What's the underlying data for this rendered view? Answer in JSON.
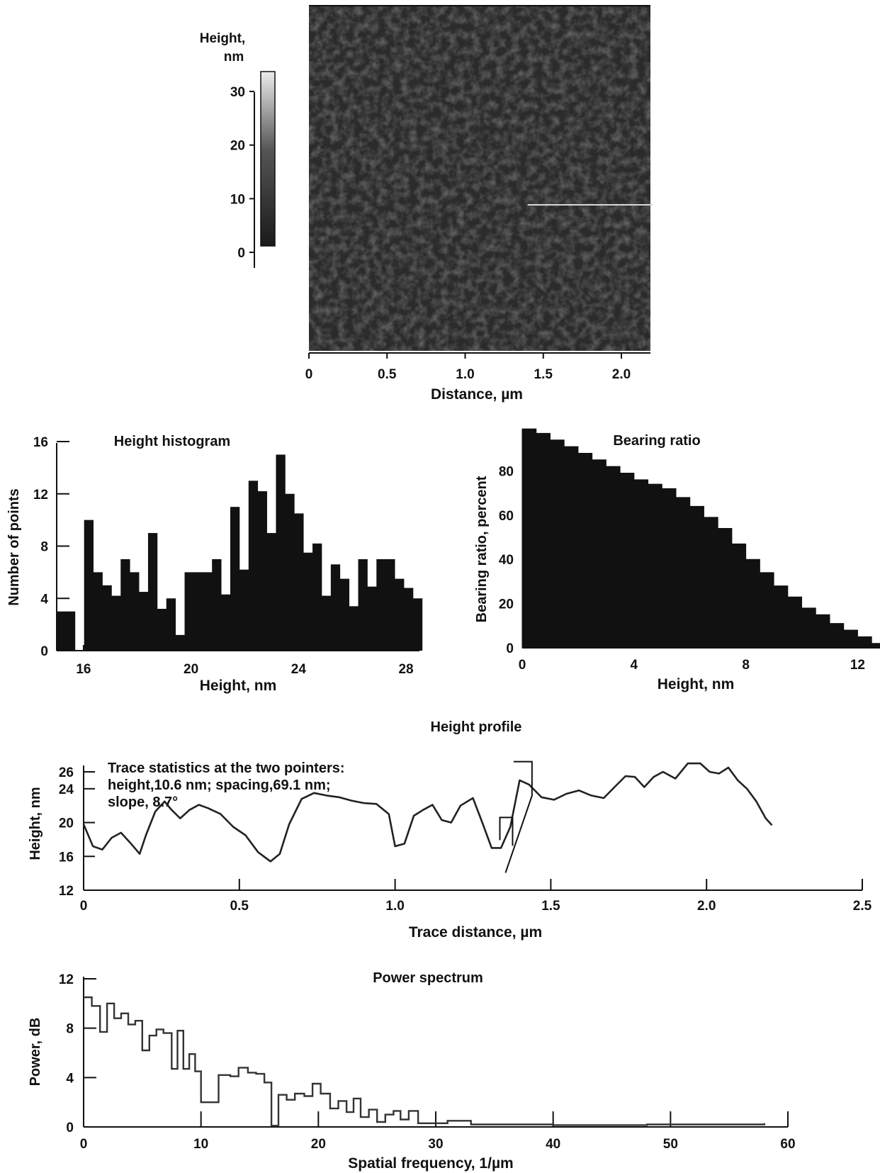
{
  "colors": {
    "ink": "#111111",
    "image_dark": "#2b2b2b",
    "image_light": "#5a5a5a",
    "paper": "#ffffff"
  },
  "chart_data": [
    {
      "type": "heatmap",
      "colorbar_label": "Height,\nnm",
      "colorbar_label_lines": [
        "Height,",
        "nm"
      ],
      "colorbar_ticks": [
        "30",
        "20",
        "10",
        "0"
      ],
      "colorbar_range": [
        0,
        34
      ],
      "xlabel": "Distance, µm",
      "xticks": [
        "0",
        "0.5",
        "1.0",
        "1.5",
        "2.0"
      ],
      "xlim": [
        0,
        2.2
      ],
      "highlight_line_y": 1.05,
      "highlight_line_x": [
        1.4,
        2.2
      ]
    },
    {
      "type": "bar",
      "title": "Height histogram",
      "xlabel": "Height, nm",
      "ylabel": "Number of points",
      "xlim": [
        15,
        28.5
      ],
      "ylim": [
        0,
        16
      ],
      "xticks": [
        "16",
        "20",
        "24",
        "28"
      ],
      "yticks": [
        "0",
        "4",
        "8",
        "12",
        "16"
      ],
      "bin_width": 0.34,
      "bin_start": 15,
      "values": [
        3,
        3,
        0,
        10,
        6,
        5,
        4.2,
        7,
        6,
        4.5,
        9,
        3.2,
        4,
        1.2,
        6,
        6,
        6,
        7,
        4.3,
        11,
        6.2,
        13,
        12.2,
        9,
        15,
        12,
        10.5,
        7.5,
        8.2,
        4.2,
        6.6,
        5.5,
        3.4,
        7,
        4.9,
        7,
        7,
        5.5,
        4.8,
        4
      ]
    },
    {
      "type": "area",
      "title": "Bearing ratio",
      "xlabel": "Height, nm",
      "ylabel": "Bearing ratio, percent",
      "xlim": [
        0,
        12.8
      ],
      "ylim": [
        0,
        100
      ],
      "xticks": [
        "0",
        "4",
        "8",
        "12"
      ],
      "yticks": [
        "0",
        "20",
        "40",
        "60",
        "80"
      ],
      "x": [
        0,
        0.5,
        1,
        1.5,
        2,
        2.5,
        3,
        3.5,
        4,
        4.5,
        5,
        5.5,
        6,
        6.5,
        7,
        7.5,
        8,
        8.5,
        9,
        9.5,
        10,
        10.5,
        11,
        11.5,
        12,
        12.5,
        12.8
      ],
      "y": [
        99,
        97,
        94,
        91,
        88,
        85,
        82,
        79,
        76,
        74,
        72,
        68,
        64,
        59,
        54,
        47,
        40,
        34,
        28,
        23,
        18,
        15,
        11,
        8,
        5,
        2,
        0
      ]
    },
    {
      "type": "line",
      "title": "Height profile",
      "xlabel": "Trace distance, µm",
      "ylabel": "Height, nm",
      "xlim": [
        0,
        2.5
      ],
      "ylim": [
        12,
        26.5
      ],
      "xticks": [
        "0",
        "0.5",
        "1.0",
        "1.5",
        "2.0",
        "2.5"
      ],
      "yticks": [
        "12",
        "16",
        "20",
        "24",
        "26"
      ],
      "annotation": [
        "Trace statistics at the two pointers:",
        "height,10.6 nm; spacing,69.1 nm;",
        "slope, 8.7°"
      ],
      "x": [
        0,
        0.03,
        0.06,
        0.09,
        0.12,
        0.15,
        0.18,
        0.2,
        0.23,
        0.26,
        0.28,
        0.31,
        0.34,
        0.37,
        0.4,
        0.44,
        0.48,
        0.52,
        0.56,
        0.6,
        0.63,
        0.66,
        0.7,
        0.74,
        0.78,
        0.82,
        0.86,
        0.9,
        0.94,
        0.98,
        1.0,
        1.03,
        1.06,
        1.09,
        1.12,
        1.15,
        1.18,
        1.21,
        1.25,
        1.28,
        1.31,
        1.34,
        1.37,
        1.4,
        1.43,
        1.47,
        1.51,
        1.55,
        1.59,
        1.63,
        1.67,
        1.71,
        1.74,
        1.77,
        1.8,
        1.83,
        1.86,
        1.9,
        1.94,
        1.98,
        2.01,
        2.04,
        2.07,
        2.1,
        2.13,
        2.16,
        2.19,
        2.21
      ],
      "y": [
        19.8,
        17.2,
        16.8,
        18.2,
        18.8,
        17.6,
        16.3,
        18.5,
        21.3,
        22.5,
        21.6,
        20.5,
        21.5,
        22.1,
        21.7,
        21.0,
        19.5,
        18.5,
        16.5,
        15.4,
        16.3,
        19.8,
        22.8,
        23.5,
        23.2,
        23.0,
        22.6,
        22.3,
        22.2,
        21.0,
        17.2,
        17.5,
        20.8,
        21.5,
        22.1,
        20.3,
        20.0,
        22.0,
        22.9,
        20.0,
        17.0,
        17.0,
        19.5,
        25.0,
        24.5,
        23.0,
        22.7,
        23.4,
        23.8,
        23.2,
        22.9,
        24.4,
        25.5,
        25.4,
        24.2,
        25.4,
        26.0,
        25.2,
        27.0,
        27.0,
        26.0,
        25.8,
        26.5,
        25.0,
        24.0,
        22.5,
        20.5,
        19.7
      ],
      "pointer_markers": [
        {
          "x": 1.35,
          "y": 20.6
        },
        {
          "x": 1.41,
          "y": 27.2
        }
      ]
    },
    {
      "type": "line",
      "title": "Power spectrum",
      "xlabel": "Spatial frequency, 1/µm",
      "ylabel": "Power, dB",
      "xlim": [
        0,
        60
      ],
      "ylim": [
        0,
        12
      ],
      "xticks": [
        "0",
        "10",
        "20",
        "30",
        "40",
        "50",
        "60"
      ],
      "yticks": [
        "0",
        "4",
        "8",
        "12"
      ],
      "x": [
        0,
        0.7,
        1.4,
        2,
        2.6,
        3.2,
        3.8,
        4.4,
        5,
        5.6,
        6.2,
        6.8,
        7.5,
        8,
        8.5,
        9,
        9.5,
        10,
        10.5,
        11.5,
        12.5,
        13.2,
        14,
        14.7,
        15.4,
        16,
        16.6,
        17.3,
        18,
        18.8,
        19.5,
        20.2,
        21,
        21.7,
        22.4,
        23,
        23.6,
        24.3,
        25,
        25.7,
        26.4,
        27,
        27.7,
        28.5,
        30,
        31,
        33,
        40,
        48,
        58
      ],
      "y": [
        10.5,
        9.8,
        7.7,
        10.0,
        8.8,
        9.2,
        8.3,
        8.6,
        6.2,
        7.4,
        7.9,
        7.6,
        4.7,
        7.8,
        4.7,
        5.9,
        4.5,
        2.0,
        2.0,
        4.2,
        4.1,
        4.8,
        4.4,
        4.3,
        3.6,
        0.1,
        2.6,
        2.2,
        2.7,
        2.5,
        3.5,
        2.7,
        1.5,
        2.1,
        1.2,
        2.3,
        0.8,
        1.4,
        0.4,
        1.0,
        1.3,
        0.6,
        1.3,
        0.3,
        0.3,
        0.5,
        0.2,
        0.15,
        0.2,
        0.3
      ]
    }
  ]
}
